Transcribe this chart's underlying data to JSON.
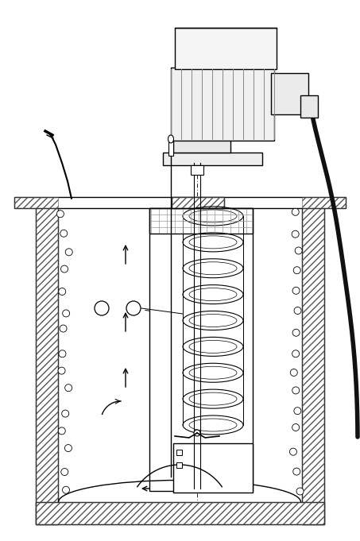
{
  "bg_color": "#ffffff",
  "line_color": "#000000",
  "fig_width": 4.53,
  "fig_height": 6.81
}
